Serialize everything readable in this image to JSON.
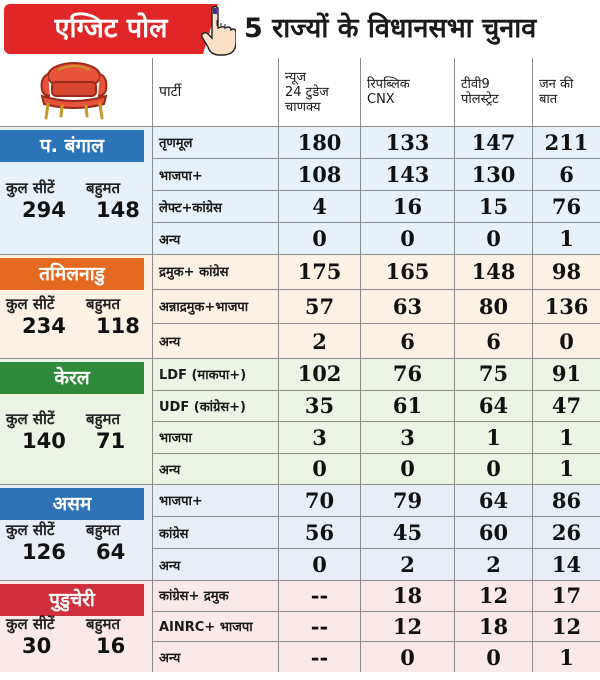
{
  "banner": {
    "tag": "एग्जिट पोल",
    "title": "5 राज्यों के विधानसभा चुनाव",
    "colors": {
      "tag_bg": "#e02626",
      "tag_text": "#ffffff"
    }
  },
  "header": {
    "party_col": "पार्टी",
    "pollsters": [
      {
        "lines": [
          "न्यूज",
          "24 टुडेज",
          "चाणक्य"
        ]
      },
      {
        "lines": [
          "रिपब्लिक",
          "CNX"
        ]
      },
      {
        "lines": [
          "टीवी9",
          "पोलस्ट्रेट"
        ]
      },
      {
        "lines": [
          "जन की",
          "बात"
        ]
      }
    ]
  },
  "labels": {
    "total_seats": "कुल सीटें",
    "majority": "बहुमत"
  },
  "states": [
    {
      "name": "प. बंगाल",
      "total": "294",
      "majority": "148",
      "label_color": "#2b74b8",
      "bg": "#e6f1fa",
      "rows": [
        {
          "party": "तृणमूल",
          "values": [
            "180",
            "133",
            "147",
            "211"
          ]
        },
        {
          "party": "भाजपा+",
          "values": [
            "108",
            "143",
            "130",
            "6"
          ]
        },
        {
          "party": "लेफ्ट+कांग्रेस",
          "values": [
            "4",
            "16",
            "15",
            "76"
          ]
        },
        {
          "party": "अन्य",
          "values": [
            "0",
            "0",
            "0",
            "1"
          ]
        }
      ]
    },
    {
      "name": "तमिलनाडु",
      "total": "234",
      "majority": "118",
      "label_color": "#e46a22",
      "bg": "#fbf2e3",
      "rows": [
        {
          "party": "द्रमुक+ कांग्रेस",
          "values": [
            "175",
            "165",
            "148",
            "98"
          ]
        },
        {
          "party": "अन्नाद्रमुक+भाजपा",
          "values": [
            "57",
            "63",
            "80",
            "136"
          ]
        },
        {
          "party": "अन्य",
          "values": [
            "2",
            "6",
            "6",
            "0"
          ]
        }
      ]
    },
    {
      "name": "केरल",
      "total": "140",
      "majority": "71",
      "label_color": "#2f8a3c",
      "bg": "#ecf4e3",
      "rows": [
        {
          "party": "LDF (माकपा+)",
          "values": [
            "102",
            "76",
            "75",
            "91"
          ]
        },
        {
          "party": "UDF (कांग्रेस+)",
          "values": [
            "35",
            "61",
            "64",
            "47"
          ]
        },
        {
          "party": "भाजपा",
          "values": [
            "3",
            "3",
            "1",
            "1"
          ]
        },
        {
          "party": "अन्य",
          "values": [
            "0",
            "0",
            "0",
            "1"
          ]
        }
      ]
    },
    {
      "name": "असम",
      "total": "126",
      "majority": "64",
      "label_color": "#2f73b6",
      "bg": "#e8eef6",
      "rows": [
        {
          "party": "भाजपा+",
          "values": [
            "70",
            "79",
            "64",
            "86"
          ]
        },
        {
          "party": "कांग्रेस",
          "values": [
            "56",
            "45",
            "60",
            "26"
          ]
        },
        {
          "party": "अन्य",
          "values": [
            "0",
            "2",
            "2",
            "14"
          ]
        }
      ]
    },
    {
      "name": "पुडुचेरी",
      "total": "30",
      "majority": "16",
      "label_color": "#d0303b",
      "bg": "#fbe8e8",
      "rows": [
        {
          "party": "कांग्रेस+ द्रमुक",
          "values": [
            "--",
            "18",
            "12",
            "17"
          ]
        },
        {
          "party": "AINRC+ भाजपा",
          "values": [
            "--",
            "12",
            "18",
            "12"
          ]
        },
        {
          "party": "अन्य",
          "values": [
            "--",
            "0",
            "0",
            "1"
          ]
        }
      ]
    }
  ]
}
